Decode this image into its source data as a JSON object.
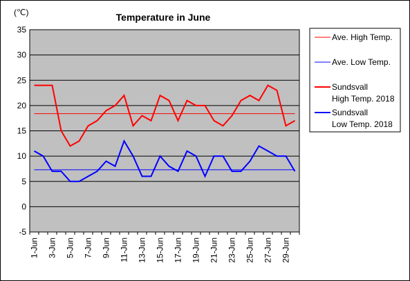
{
  "chart_data": {
    "type": "line",
    "title": "Temperature in June",
    "unit_label": "(℃)",
    "ylim": [
      -5,
      35
    ],
    "y_ticks": [
      35,
      30,
      25,
      20,
      15,
      10,
      5,
      0,
      -5
    ],
    "x_tick_labels": [
      "1-Jun",
      "3-Jun",
      "5-Jun",
      "7-Jun",
      "9-Jun",
      "11-Jun",
      "13-Jun",
      "15-Jun",
      "17-Jun",
      "19-Jun",
      "21-Jun",
      "23-Jun",
      "25-Jun",
      "27-Jun",
      "29-Jun"
    ],
    "grid": true,
    "legend_position": "right",
    "x": [
      1,
      2,
      3,
      4,
      5,
      6,
      7,
      8,
      9,
      10,
      11,
      12,
      13,
      14,
      15,
      16,
      17,
      18,
      19,
      20,
      21,
      22,
      23,
      24,
      25,
      26,
      27,
      28,
      29,
      30
    ],
    "series": [
      {
        "name": "Ave. High Temp.",
        "color": "#ff0000",
        "style": "thin",
        "values": [
          18.4,
          18.4,
          18.4,
          18.4,
          18.4,
          18.4,
          18.4,
          18.4,
          18.4,
          18.4,
          18.4,
          18.4,
          18.4,
          18.4,
          18.4,
          18.4,
          18.4,
          18.4,
          18.4,
          18.4,
          18.4,
          18.4,
          18.4,
          18.4,
          18.4,
          18.4,
          18.4,
          18.4,
          18.4,
          18.4
        ]
      },
      {
        "name": "Ave. Low Temp.",
        "color": "#0000ff",
        "style": "thin",
        "values": [
          7.3,
          7.3,
          7.3,
          7.3,
          7.3,
          7.3,
          7.3,
          7.3,
          7.3,
          7.3,
          7.3,
          7.3,
          7.3,
          7.3,
          7.3,
          7.3,
          7.3,
          7.3,
          7.3,
          7.3,
          7.3,
          7.3,
          7.3,
          7.3,
          7.3,
          7.3,
          7.3,
          7.3,
          7.3,
          7.3
        ]
      },
      {
        "name": "Sundsvall\nHigh Temp. 2018",
        "color": "#ff0000",
        "style": "thick",
        "values": [
          24,
          24,
          24,
          15,
          12,
          13,
          16,
          17,
          19,
          20,
          22,
          16,
          18,
          17,
          22,
          21,
          17,
          21,
          20,
          20,
          17,
          16,
          18,
          21,
          22,
          21,
          24,
          23,
          16,
          17
        ]
      },
      {
        "name": "Sundsvall\nLow Temp. 2018",
        "color": "#0000ff",
        "style": "thick",
        "values": [
          11,
          10,
          7,
          7,
          5,
          5,
          6,
          7,
          9,
          8,
          13,
          10,
          6,
          6,
          10,
          8,
          7,
          11,
          10,
          6,
          10,
          10,
          7,
          7,
          9,
          12,
          11,
          10,
          10,
          7
        ]
      }
    ]
  }
}
